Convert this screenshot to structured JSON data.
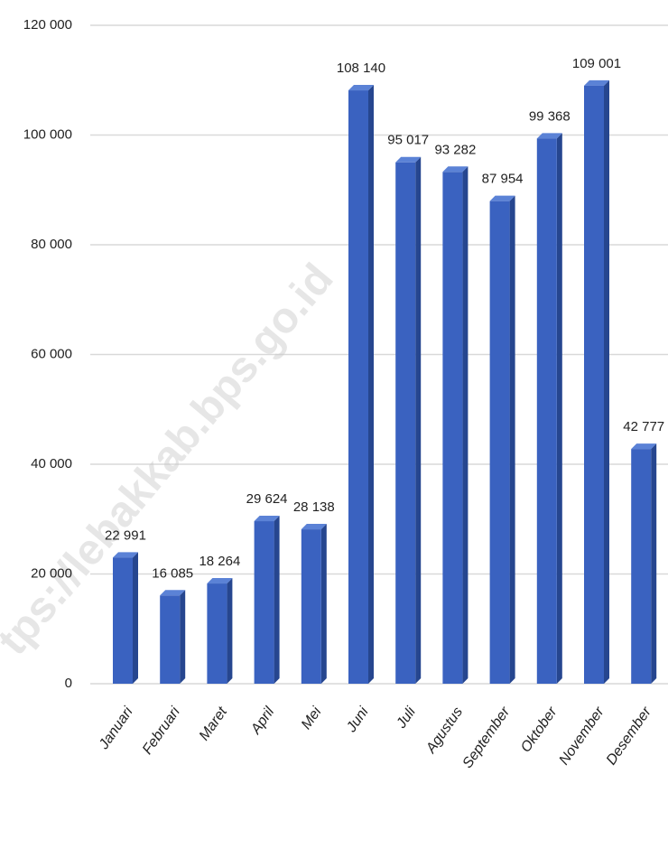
{
  "chart_data": {
    "type": "bar",
    "categories": [
      "Januari",
      "Februari",
      "Maret",
      "April",
      "Mei",
      "Juni",
      "Juli",
      "Agustus",
      "September",
      "Oktober",
      "November",
      "Desember"
    ],
    "values": [
      22991,
      16085,
      18264,
      29624,
      28138,
      108140,
      95017,
      93282,
      87954,
      99368,
      109001,
      42777
    ],
    "value_labels": [
      "22 991",
      "16 085",
      "18 264",
      "29 624",
      "28 138",
      "108 140",
      "95 017",
      "93 282",
      "87 954",
      "99 368",
      "109 001",
      "42 777"
    ],
    "color": "#3a62c0",
    "ylim": [
      0,
      120000
    ],
    "yticks": [
      {
        "value": 0,
        "label": "0"
      },
      {
        "value": 20000,
        "label": "20 000"
      },
      {
        "value": 40000,
        "label": "40 000"
      },
      {
        "value": 60000,
        "label": "60 000"
      },
      {
        "value": 80000,
        "label": "80 000"
      },
      {
        "value": 100000,
        "label": "100 000"
      },
      {
        "value": 120000,
        "label": "120 000"
      }
    ],
    "grid": true,
    "watermark": "tps://lebakkab.bps.go.id"
  }
}
